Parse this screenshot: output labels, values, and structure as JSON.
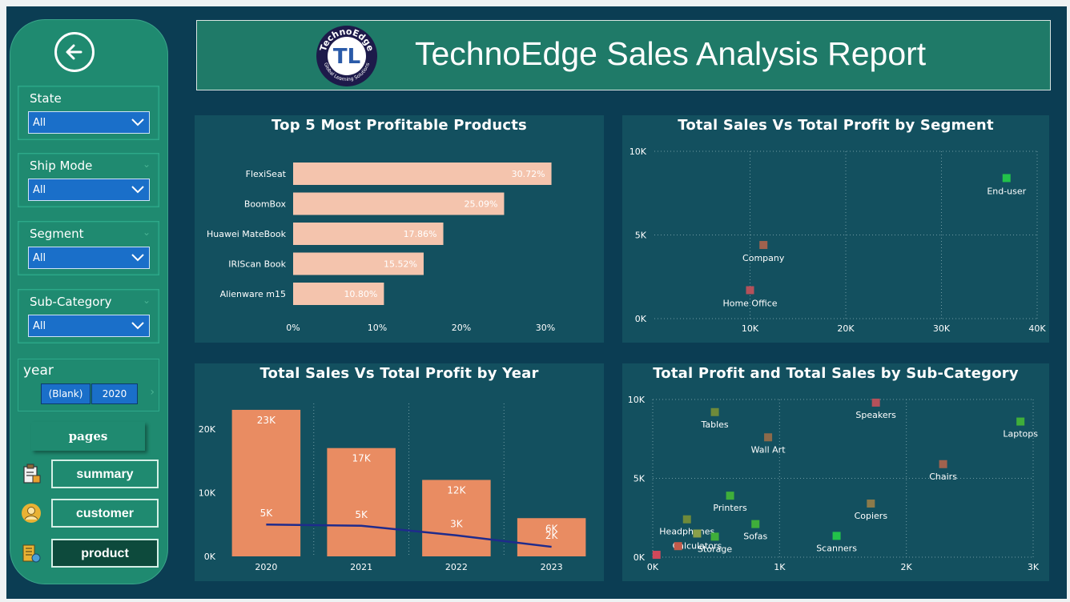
{
  "header": {
    "title": "TechnoEdge Sales Analysis Report",
    "logo_text": "TechnoEdge",
    "logo_subtext": "Global Learning Solutions",
    "logo_initials": "TL"
  },
  "sidebar": {
    "back_icon": "back-arrow-icon",
    "filters": [
      {
        "label": "State",
        "value": "All"
      },
      {
        "label": "Ship Mode",
        "value": "All"
      },
      {
        "label": "Segment",
        "value": "All"
      },
      {
        "label": "Sub-Category",
        "value": "All"
      }
    ],
    "year": {
      "label": "year",
      "options": [
        "(Blank)",
        "2020"
      ]
    },
    "pages_label": "pages",
    "nav": [
      {
        "label": "summary",
        "icon": "clipboard-icon"
      },
      {
        "label": "customer",
        "icon": "user-icon"
      },
      {
        "label": "product",
        "icon": "product-icon"
      }
    ]
  },
  "colors": {
    "background": "#0b3d53",
    "panel": "#13505f",
    "sidebar": "#1f8a70",
    "bar_pink": "#f4c4ad",
    "bar_orange": "#e98c62",
    "line_blue": "#1f2b8c",
    "accent_green": "#22c24a"
  },
  "panels": {
    "top_products": {
      "title": "Top 5 Most Profitable Products"
    },
    "segment": {
      "title": "Total Sales Vs Total Profit by Segment"
    },
    "year": {
      "title": "Total Sales Vs Total Profit by Year"
    },
    "subcat": {
      "title": "Total Profit and Total Sales by Sub-Category"
    }
  },
  "chart_data": [
    {
      "type": "bar",
      "orientation": "horizontal",
      "title": "Top 5 Most Profitable Products",
      "categories": [
        "FlexiSeat",
        "BoomBox",
        "Huawei MateBook",
        "IRIScan Book",
        "Alienware m15"
      ],
      "values": [
        30.72,
        25.09,
        17.86,
        15.52,
        10.8
      ],
      "value_labels": [
        "30.72%",
        "25.09%",
        "17.86%",
        "15.52%",
        "10.80%"
      ],
      "xlim": [
        0,
        30
      ],
      "x_ticks": [
        "0%",
        "10%",
        "20%",
        "30%"
      ],
      "x_tick_values": [
        0,
        10,
        20,
        30
      ]
    },
    {
      "type": "scatter",
      "title": "Total Sales Vs Total Profit by Segment",
      "xlim": [
        0,
        40000
      ],
      "ylim": [
        0,
        10000
      ],
      "x_ticks": [
        "10K",
        "20K",
        "30K",
        "40K"
      ],
      "x_tick_values": [
        10000,
        20000,
        30000,
        40000
      ],
      "y_ticks": [
        "0K",
        "5K",
        "10K"
      ],
      "y_tick_values": [
        0,
        5000,
        10000
      ],
      "points": [
        {
          "label": "End-user",
          "x": 36800,
          "y": 8400,
          "color": "#22c24a"
        },
        {
          "label": "Company",
          "x": 11400,
          "y": 4400,
          "color": "#a0624e"
        },
        {
          "label": "Home Office",
          "x": 10000,
          "y": 1700,
          "color": "#b4515a"
        }
      ]
    },
    {
      "type": "bar",
      "title": "Total Sales Vs Total Profit by Year",
      "categories": [
        "2020",
        "2021",
        "2022",
        "2023"
      ],
      "series": [
        {
          "name": "Total Sales",
          "type": "bar",
          "values": [
            23000,
            17000,
            12000,
            6000
          ],
          "labels": [
            "23K",
            "17K",
            "12K",
            "6K"
          ]
        },
        {
          "name": "Total Profit",
          "type": "line",
          "values": [
            5000,
            4800,
            3300,
            1500
          ],
          "labels": [
            "5K",
            "5K",
            "3K",
            "2K"
          ]
        }
      ],
      "ylim": [
        0,
        24000
      ],
      "y_ticks": [
        "0K",
        "10K",
        "20K"
      ],
      "y_tick_values": [
        0,
        10000,
        20000
      ]
    },
    {
      "type": "scatter",
      "title": "Total Profit and Total Sales by Sub-Category",
      "xlim": [
        0,
        3000
      ],
      "ylim": [
        0,
        10000
      ],
      "x_ticks": [
        "0K",
        "1K",
        "2K",
        "3K"
      ],
      "x_tick_values": [
        0,
        1000,
        2000,
        3000
      ],
      "y_ticks": [
        "0K",
        "5K",
        "10K"
      ],
      "y_tick_values": [
        0,
        5000,
        10000
      ],
      "points": [
        {
          "label": "Tables",
          "x": 490,
          "y": 9200,
          "color": "#6f8a3a"
        },
        {
          "label": "Speakers",
          "x": 1760,
          "y": 9800,
          "color": "#b4515a"
        },
        {
          "label": "Laptops",
          "x": 2900,
          "y": 8600,
          "color": "#3fae3a"
        },
        {
          "label": "Wall Art",
          "x": 910,
          "y": 7600,
          "color": "#8c6a4a"
        },
        {
          "label": "Chairs",
          "x": 2290,
          "y": 5900,
          "color": "#a0624e"
        },
        {
          "label": "Printers",
          "x": 610,
          "y": 3900,
          "color": "#3fae3a"
        },
        {
          "label": "Copiers",
          "x": 1720,
          "y": 3400,
          "color": "#8c7a4a"
        },
        {
          "label": "Headphones",
          "x": 270,
          "y": 2400,
          "color": "#6f8a3a"
        },
        {
          "label": "Sofas",
          "x": 810,
          "y": 2100,
          "color": "#3fae3a"
        },
        {
          "label": "Calculators",
          "x": 350,
          "y": 1500,
          "color": "#8aa04a"
        },
        {
          "label": "Storage",
          "x": 490,
          "y": 1300,
          "color": "#3fae3a"
        },
        {
          "label": "Scanners",
          "x": 1450,
          "y": 1350,
          "color": "#22c24a"
        },
        {
          "label": "",
          "x": 30,
          "y": 150,
          "color": "#d0485a"
        },
        {
          "label": "",
          "x": 200,
          "y": 700,
          "color": "#c25a4a"
        }
      ]
    }
  ]
}
